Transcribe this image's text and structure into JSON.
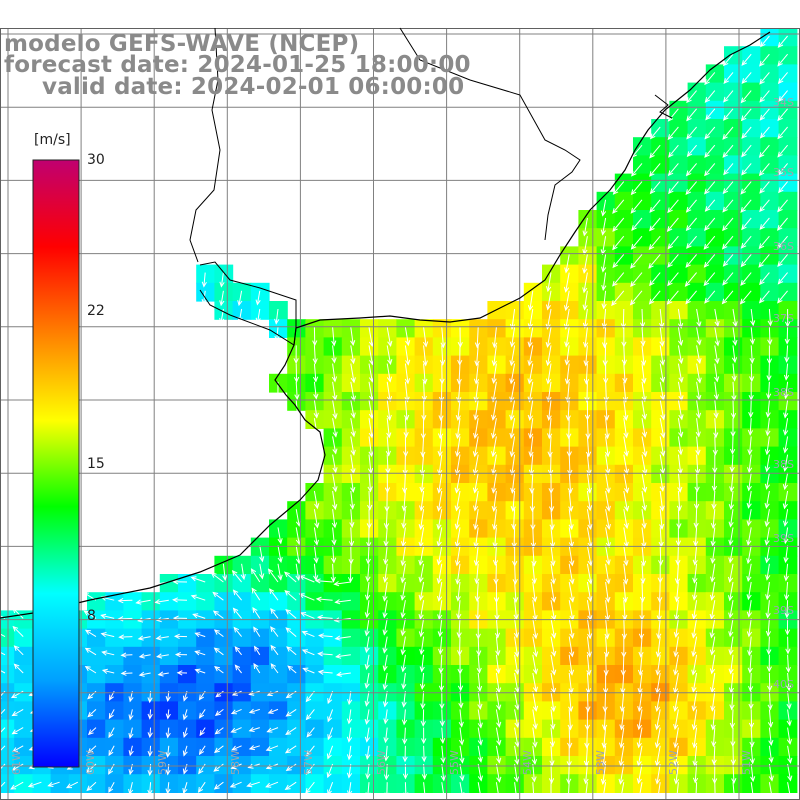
{
  "title": {
    "line1": "modelo GEFS-WAVE (NCEP)",
    "line2": "forecast date: 2024-01-25 18:00:00",
    "line3": "valid date: 2024-02-01 06:00:00"
  },
  "colorbar": {
    "unit": "[m/s]",
    "ticks": [
      "30",
      "22",
      "15",
      "8"
    ],
    "range": [
      0,
      30
    ],
    "colors": [
      "#0000ff",
      "#00a0ff",
      "#00ffff",
      "#00ff00",
      "#ffff00",
      "#ff8000",
      "#ff0000",
      "#c00070"
    ]
  },
  "grid": {
    "lat_labels": [
      "34S",
      "35S",
      "36S",
      "37S",
      "38S",
      "39S",
      "40S"
    ],
    "lon_labels": [
      "61W",
      "60W",
      "59W",
      "58W",
      "57W",
      "56W",
      "55W",
      "54W",
      "53W",
      "52W",
      "51W"
    ]
  },
  "colors": {
    "coast": "#000000",
    "grid": "#808080",
    "arrows": "#ffffff",
    "title": "#8a8a8a"
  }
}
